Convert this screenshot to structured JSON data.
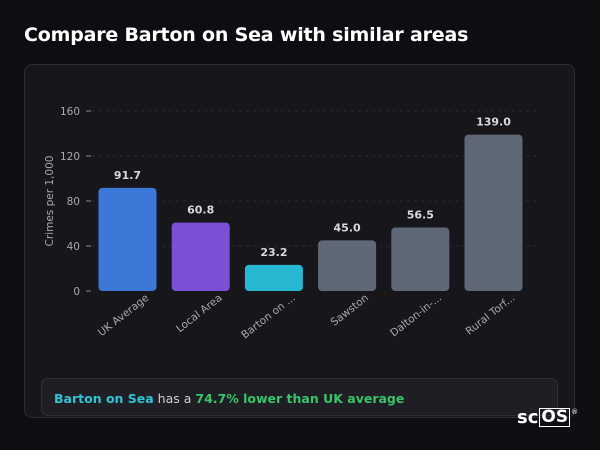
{
  "header": {
    "title": "Compare Barton on Sea with similar areas"
  },
  "chart_data": {
    "type": "bar",
    "ylabel": "Crimes per 1,000",
    "xlabel": "",
    "ylim": [
      0,
      160
    ],
    "yticks": [
      0,
      40,
      80,
      120,
      160
    ],
    "grid": true,
    "categories": [
      "UK Average",
      "Local Area",
      "Barton on ...",
      "Sawston",
      "Dalton-in-...",
      "Rural Torf..."
    ],
    "values": [
      91.7,
      60.8,
      23.2,
      45.0,
      56.5,
      139.0
    ],
    "value_labels": [
      "91.7",
      "60.8",
      "23.2",
      "45.0",
      "56.5",
      "139.0"
    ],
    "colors": [
      "#3b78d8",
      "#7b4fd6",
      "#26b8d1",
      "#5f6876",
      "#5f6876",
      "#5f6876"
    ]
  },
  "callout": {
    "area": "Barton on Sea",
    "middle": " has a ",
    "difference": "74.7% lower than UK average"
  },
  "logo": {
    "prefix": "sc",
    "boxed": "OS",
    "mark": "®"
  }
}
